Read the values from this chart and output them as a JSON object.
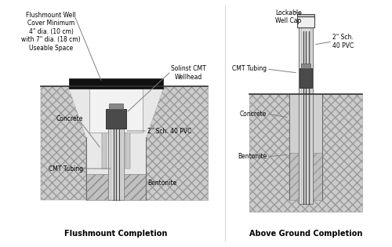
{
  "title_left": "Flushmount Completion",
  "title_right": "Above Ground Completion",
  "bg_color": "#ffffff",
  "label_flushmount_well": "Flushmount Well\nCover Minimum\n4\" dia. (10 cm)\nwith 7\" dia. (18 cm)\nUseable Space",
  "label_solinst": "Solinst CMT\nWellhead",
  "label_concrete_left": "Concrete",
  "label_cmt_left": "CMT Tubing",
  "label_pvc_left": "2\" Sch. 40 PVC",
  "label_bentonite_left": "Bentonite",
  "label_lockable": "Lockable\nWell Cap",
  "label_pvc_right": "2\" Sch.\n40 PVC",
  "label_cmt_right": "CMT Tubing",
  "label_concrete_right": "Concrete",
  "label_bentonite_right": "Bentonite"
}
